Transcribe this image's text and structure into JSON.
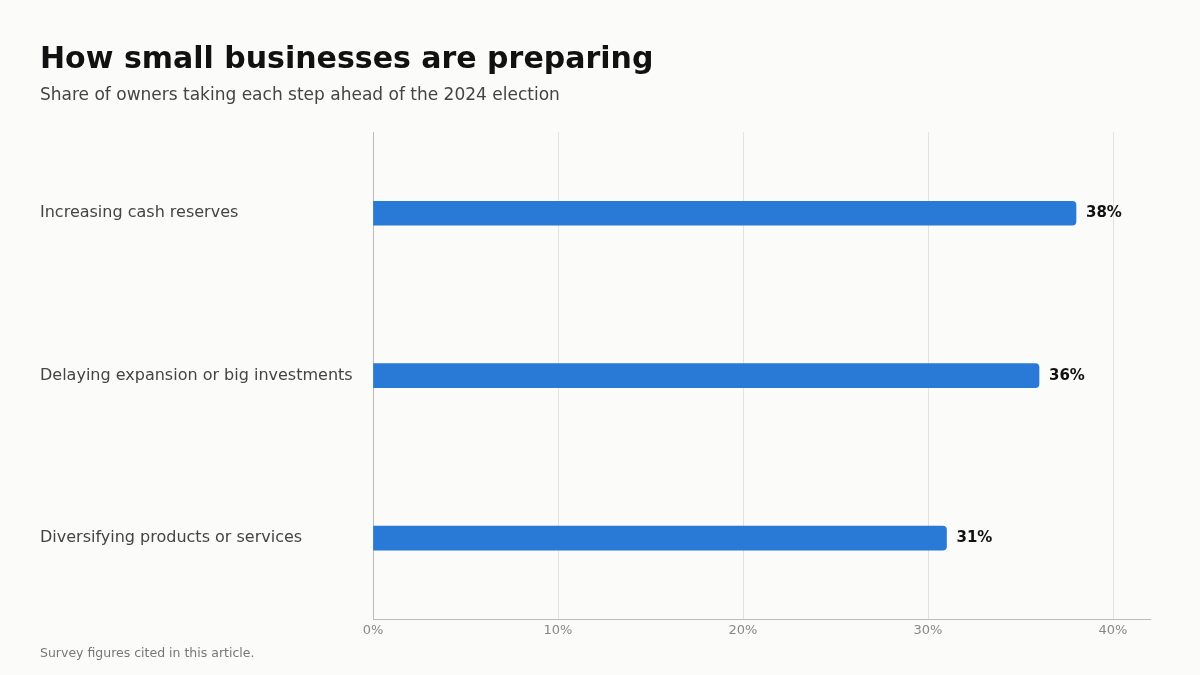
{
  "chart_data": {
    "type": "bar",
    "orientation": "horizontal",
    "title": "How small businesses are preparing",
    "subtitle": "Share of owners taking each step ahead of the 2024 election",
    "categories": [
      "Increasing cash reserves",
      "Delaying expansion or big investments",
      "Diversifying products or services"
    ],
    "values": [
      38,
      36,
      31
    ],
    "color": "#2979d6",
    "value_labels": [
      "38%",
      "36%",
      "31%"
    ],
    "xlim": [
      0,
      42
    ],
    "xticks": [
      {
        "value": 0,
        "label": "0%"
      },
      {
        "value": 10,
        "label": "10%"
      },
      {
        "value": 20,
        "label": "20%"
      },
      {
        "value": 30,
        "label": "30%"
      },
      {
        "value": 40,
        "label": "40%"
      }
    ],
    "grid": "x",
    "annotations": [
      "Survey figures cited in this article."
    ]
  }
}
